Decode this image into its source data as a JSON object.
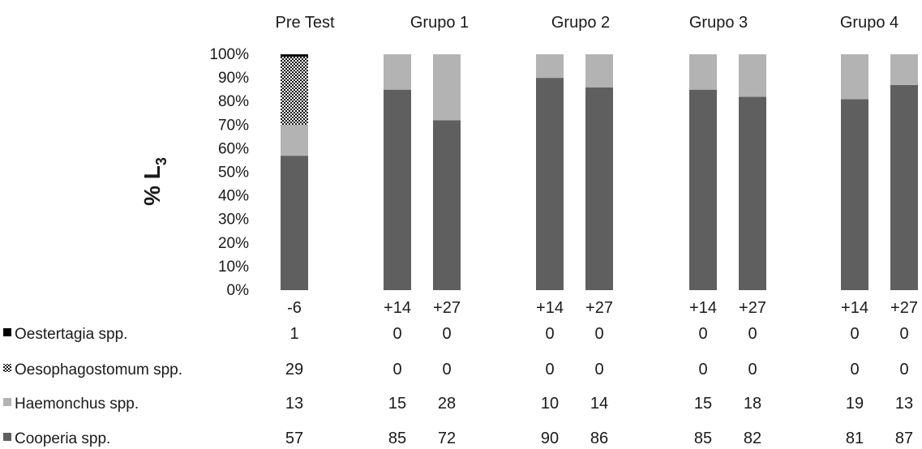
{
  "chart_data": {
    "type": "bar",
    "stacked": true,
    "normalized": true,
    "ylabel": "% L",
    "ylabel_subscript": "3",
    "ylim": [
      0,
      100
    ],
    "yticks": [
      "0%",
      "10%",
      "20%",
      "30%",
      "40%",
      "50%",
      "60%",
      "70%",
      "80%",
      "90%",
      "100%"
    ],
    "groups": [
      {
        "label": "Pre Test",
        "categories": [
          "-6"
        ]
      },
      {
        "label": "Grupo 1",
        "categories": [
          "+14",
          "+27"
        ]
      },
      {
        "label": "Grupo 2",
        "categories": [
          "+14",
          "+27"
        ]
      },
      {
        "label": "Grupo 3",
        "categories": [
          "+14",
          "+27"
        ]
      },
      {
        "label": "Grupo 4",
        "categories": [
          "+14",
          "+27"
        ]
      }
    ],
    "categories": [
      "-6",
      "+14",
      "+27",
      "+14",
      "+27",
      "+14",
      "+27",
      "+14",
      "+27"
    ],
    "series": [
      {
        "name": "Oestertagia spp.",
        "color": "#000000",
        "pattern": "solid-black",
        "values": [
          1,
          0,
          0,
          0,
          0,
          0,
          0,
          0,
          0
        ],
        "labels": [
          "1",
          "0",
          "0",
          "0",
          "0",
          "0",
          "0",
          "0",
          "0"
        ]
      },
      {
        "name": "Oesophagostomum spp.",
        "color": "#222222",
        "pattern": "dotted",
        "values": [
          29,
          0,
          0,
          0,
          0,
          0,
          0,
          0,
          0
        ],
        "labels": [
          "29",
          "0",
          "0",
          "0",
          "0",
          "0",
          "0",
          "0",
          "0"
        ]
      },
      {
        "name": "Haemonchus spp.",
        "color": "#b3b3b3",
        "pattern": "solid",
        "values": [
          13,
          15,
          28,
          10,
          14,
          15,
          18,
          19,
          13
        ],
        "labels": [
          "13",
          "15",
          "28",
          "10",
          "14",
          "15",
          "18",
          "19",
          "13"
        ]
      },
      {
        "name": "Cooperia spp.",
        "color": "#5f5f5f",
        "pattern": "solid",
        "values": [
          57,
          85,
          72,
          90,
          86,
          85,
          82,
          81,
          87
        ],
        "labels": [
          "57",
          "85",
          "72",
          "90",
          "86",
          "85",
          "82",
          "81",
          "87"
        ]
      }
    ]
  }
}
